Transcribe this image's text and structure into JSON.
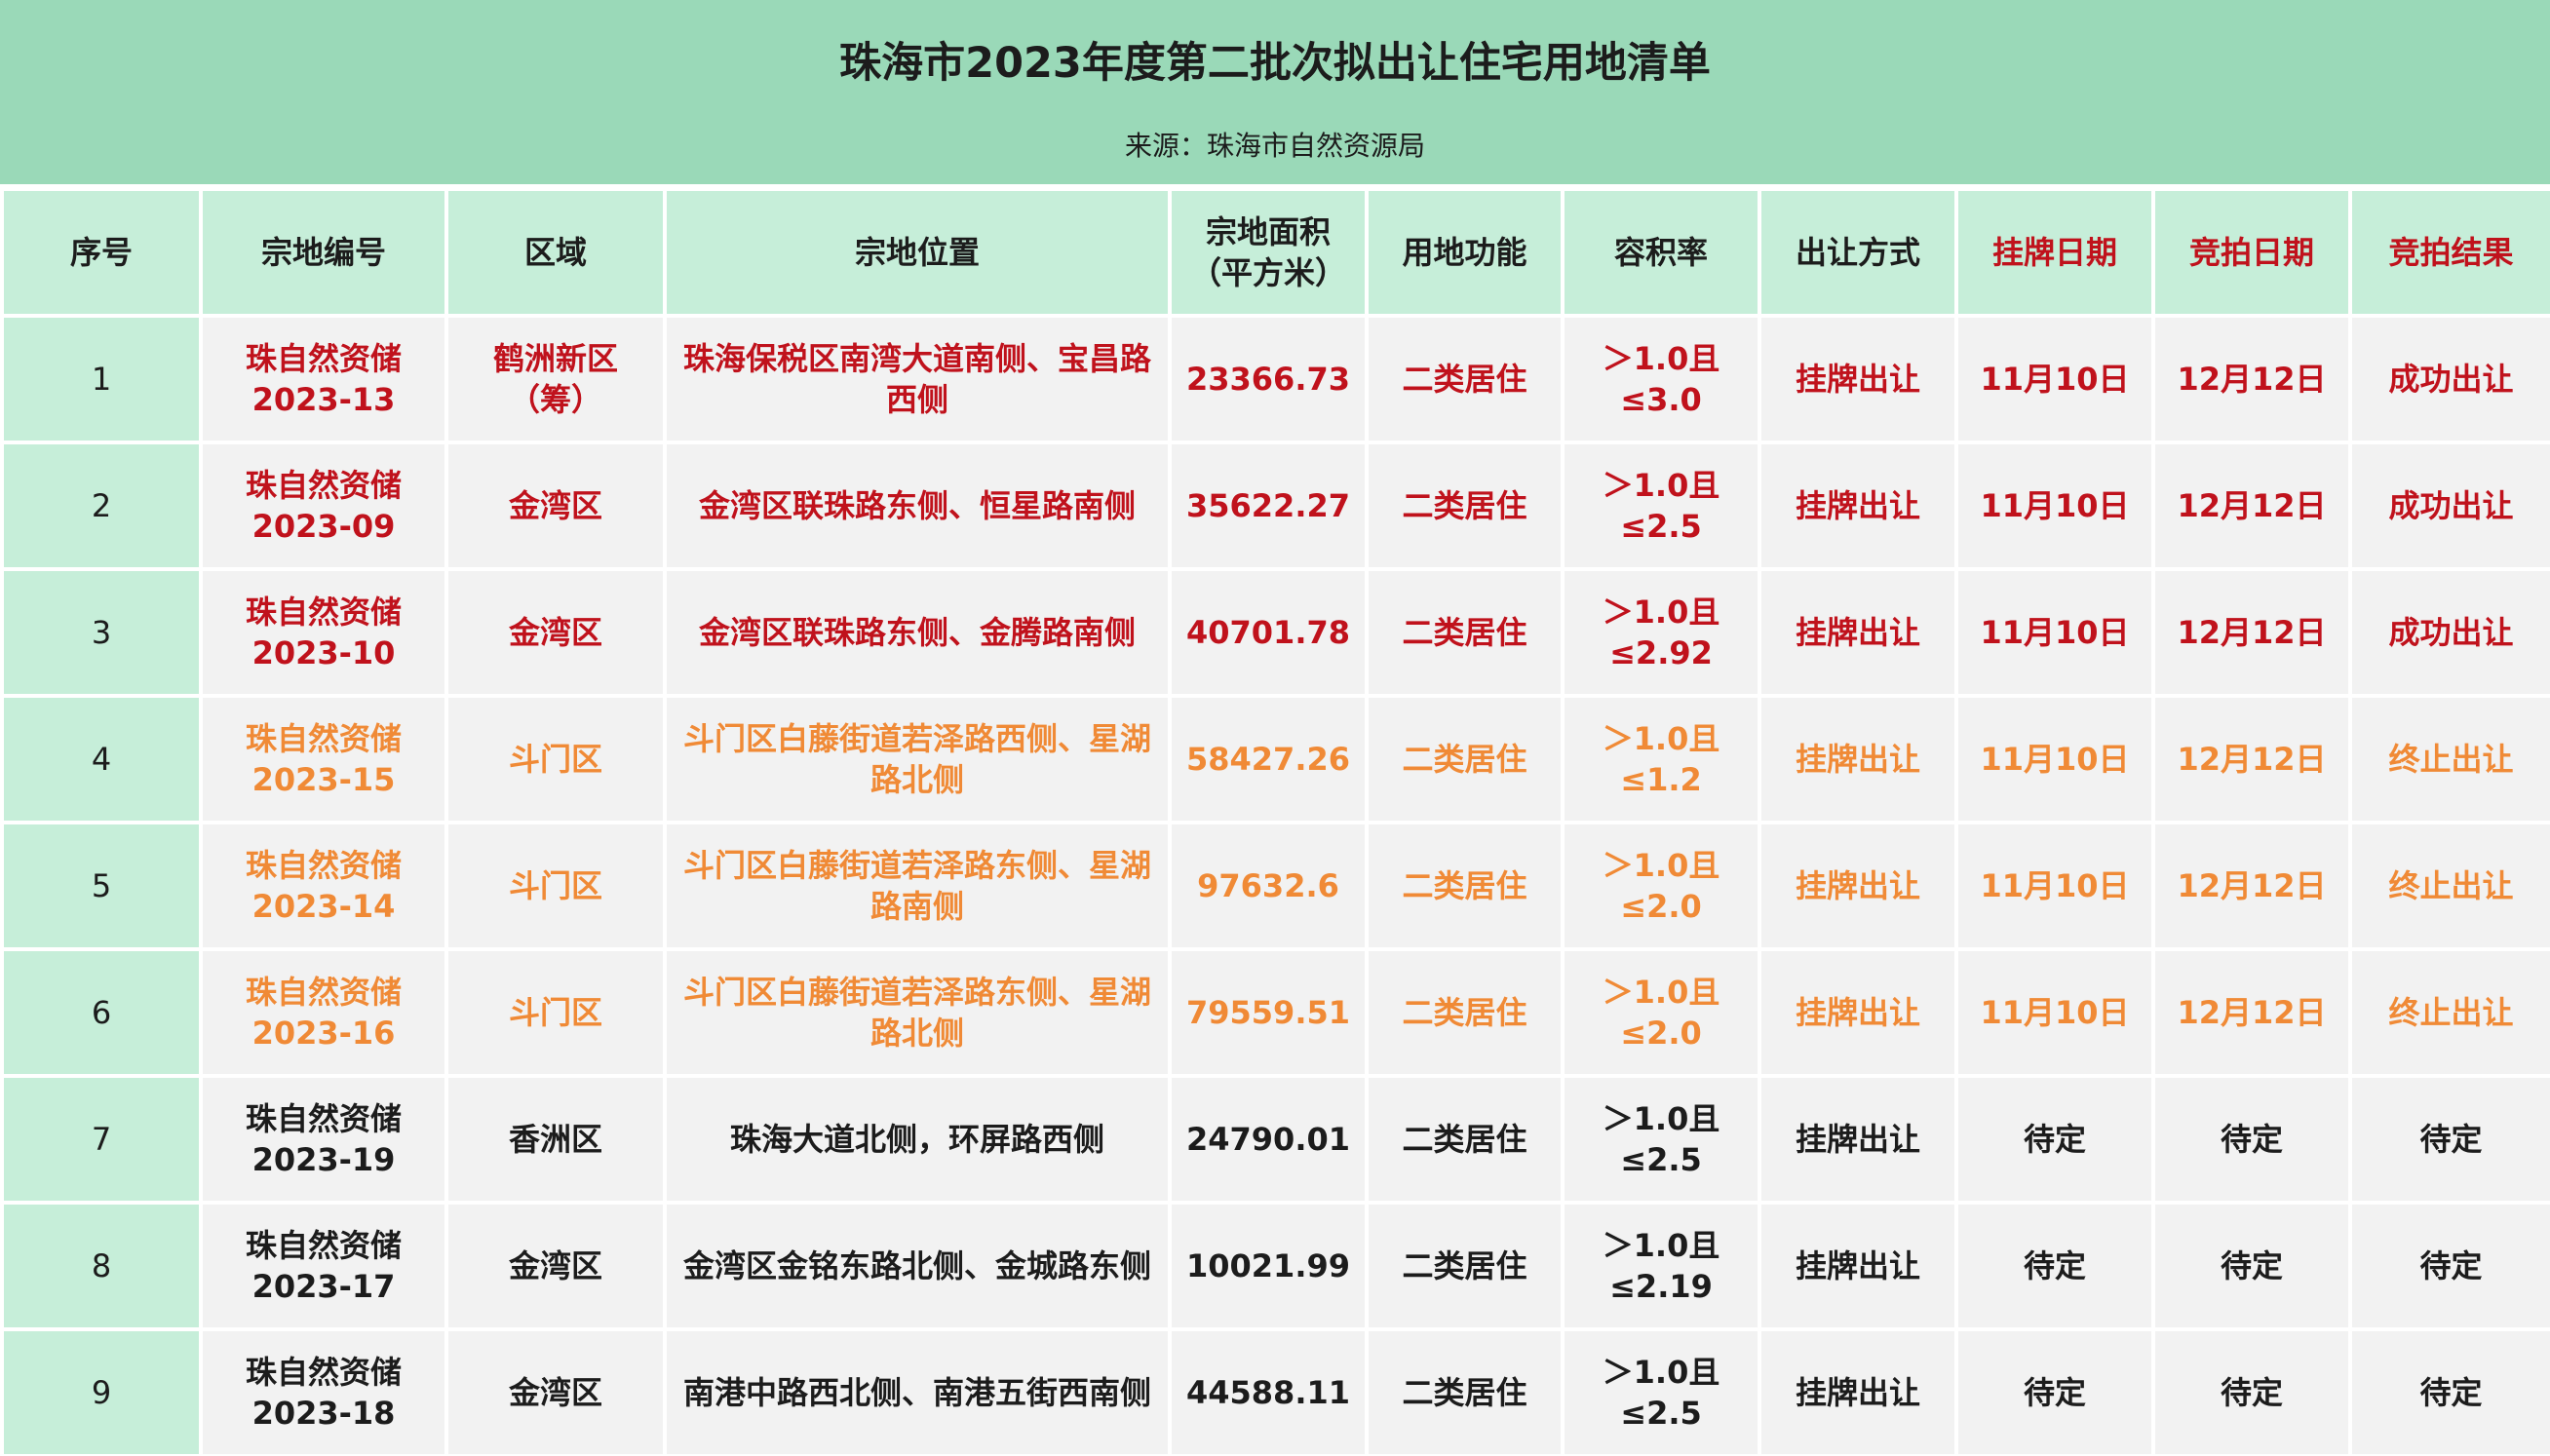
{
  "header": {
    "title": "珠海市2023年度第二批次拟出让住宅用地清单",
    "source": "来源：珠海市自然资源局"
  },
  "columns": {
    "seq": "序号",
    "parcel_id": "宗地编号",
    "district": "区域",
    "location": "宗地位置",
    "area": "宗地面积（平方米）",
    "use": "用地功能",
    "far": "容积率",
    "method": "出让方式",
    "listing_date": "挂牌日期",
    "auction_date": "竞拍日期",
    "result": "竞拍结果"
  },
  "rows": [
    {
      "seq": "1",
      "parcel_id": "珠自然资储2023-13",
      "district": "鹤洲新区（筹）",
      "location": "珠海保税区南湾大道南侧、宝昌路西侧",
      "area": "23366.73",
      "use": "二类居住",
      "far": "＞1.0且≤3.0",
      "method": "挂牌出让",
      "listing_date": "11月10日",
      "auction_date": "12月12日",
      "result": "成功出让",
      "status": "success"
    },
    {
      "seq": "2",
      "parcel_id": "珠自然资储2023-09",
      "district": "金湾区",
      "location": "金湾区联珠路东侧、恒星路南侧",
      "area": "35622.27",
      "use": "二类居住",
      "far": "＞1.0且≤2.5",
      "method": "挂牌出让",
      "listing_date": "11月10日",
      "auction_date": "12月12日",
      "result": "成功出让",
      "status": "success"
    },
    {
      "seq": "3",
      "parcel_id": "珠自然资储2023-10",
      "district": "金湾区",
      "location": "金湾区联珠路东侧、金腾路南侧",
      "area": "40701.78",
      "use": "二类居住",
      "far": "＞1.0且≤2.92",
      "method": "挂牌出让",
      "listing_date": "11月10日",
      "auction_date": "12月12日",
      "result": "成功出让",
      "status": "success"
    },
    {
      "seq": "4",
      "parcel_id": "珠自然资储2023-15",
      "district": "斗门区",
      "location": "斗门区白藤街道若泽路西侧、星湖路北侧",
      "area": "58427.26",
      "use": "二类居住",
      "far": "＞1.0且≤1.2",
      "method": "挂牌出让",
      "listing_date": "11月10日",
      "auction_date": "12月12日",
      "result": "终止出让",
      "status": "stop"
    },
    {
      "seq": "5",
      "parcel_id": "珠自然资储2023-14",
      "district": "斗门区",
      "location": "斗门区白藤街道若泽路东侧、星湖路南侧",
      "area": "97632.6",
      "use": "二类居住",
      "far": "＞1.0且≤2.0",
      "method": "挂牌出让",
      "listing_date": "11月10日",
      "auction_date": "12月12日",
      "result": "终止出让",
      "status": "stop"
    },
    {
      "seq": "6",
      "parcel_id": "珠自然资储2023-16",
      "district": "斗门区",
      "location": "斗门区白藤街道若泽路东侧、星湖路北侧",
      "area": "79559.51",
      "use": "二类居住",
      "far": "＞1.0且≤2.0",
      "method": "挂牌出让",
      "listing_date": "11月10日",
      "auction_date": "12月12日",
      "result": "终止出让",
      "status": "stop"
    },
    {
      "seq": "7",
      "parcel_id": "珠自然资储2023-19",
      "district": "香洲区",
      "location": "珠海大道北侧，环屏路西侧",
      "area": "24790.01",
      "use": "二类居住",
      "far": "＞1.0且≤2.5",
      "method": "挂牌出让",
      "listing_date": "待定",
      "auction_date": "待定",
      "result": "待定",
      "status": "pending"
    },
    {
      "seq": "8",
      "parcel_id": "珠自然资储2023-17",
      "district": "金湾区",
      "location": "金湾区金铭东路北侧、金城路东侧",
      "area": "10021.99",
      "use": "二类居住",
      "far": "＞1.0且≤2.19",
      "method": "挂牌出让",
      "listing_date": "待定",
      "auction_date": "待定",
      "result": "待定",
      "status": "pending"
    },
    {
      "seq": "9",
      "parcel_id": "珠自然资储2023-18",
      "district": "金湾区",
      "location": "南港中路西北侧、南港五街西南侧",
      "area": "44588.11",
      "use": "二类居住",
      "far": "＞1.0且≤2.5",
      "method": "挂牌出让",
      "listing_date": "待定",
      "auction_date": "待定",
      "result": "待定",
      "status": "pending"
    }
  ],
  "colors": {
    "banner": "#9ad9b8",
    "header_cell": "#c6eed9",
    "body_cell": "#f2f2f2",
    "success": "#c0121c",
    "stop": "#f08a36",
    "pending": "#1c1c1c"
  }
}
